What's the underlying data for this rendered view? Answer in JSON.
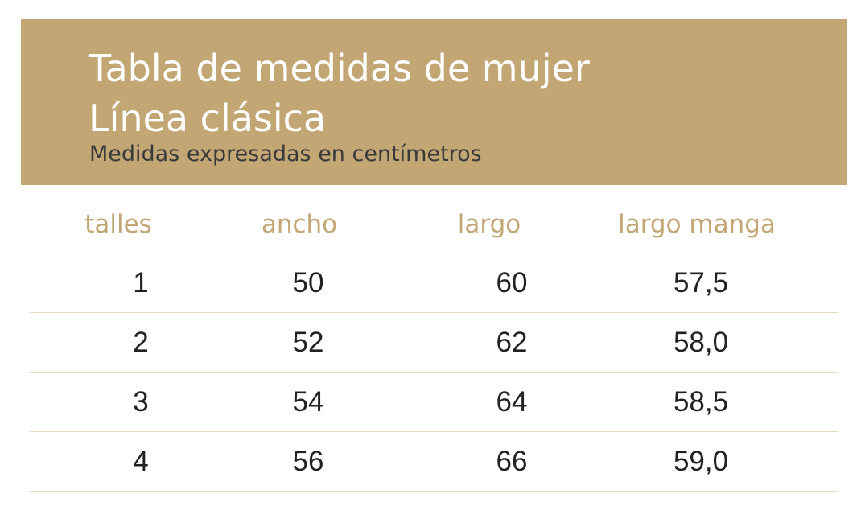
{
  "header": {
    "title_line1": "Tabla de medidas de mujer",
    "title_line2": "Línea clásica",
    "subtitle": "Medidas expresadas en centímetros",
    "background_color": "#c2a775"
  },
  "table": {
    "columns": [
      "talles",
      "ancho",
      "largo",
      "largo manga"
    ],
    "rows": [
      [
        "1",
        "50",
        "60",
        "57,5"
      ],
      [
        "2",
        "52",
        "62",
        "58,0"
      ],
      [
        "3",
        "54",
        "64",
        "58,5"
      ],
      [
        "4",
        "56",
        "66",
        "59,0"
      ]
    ],
    "header_color": "#c2a775",
    "divider_color": "#e6d9bd"
  }
}
